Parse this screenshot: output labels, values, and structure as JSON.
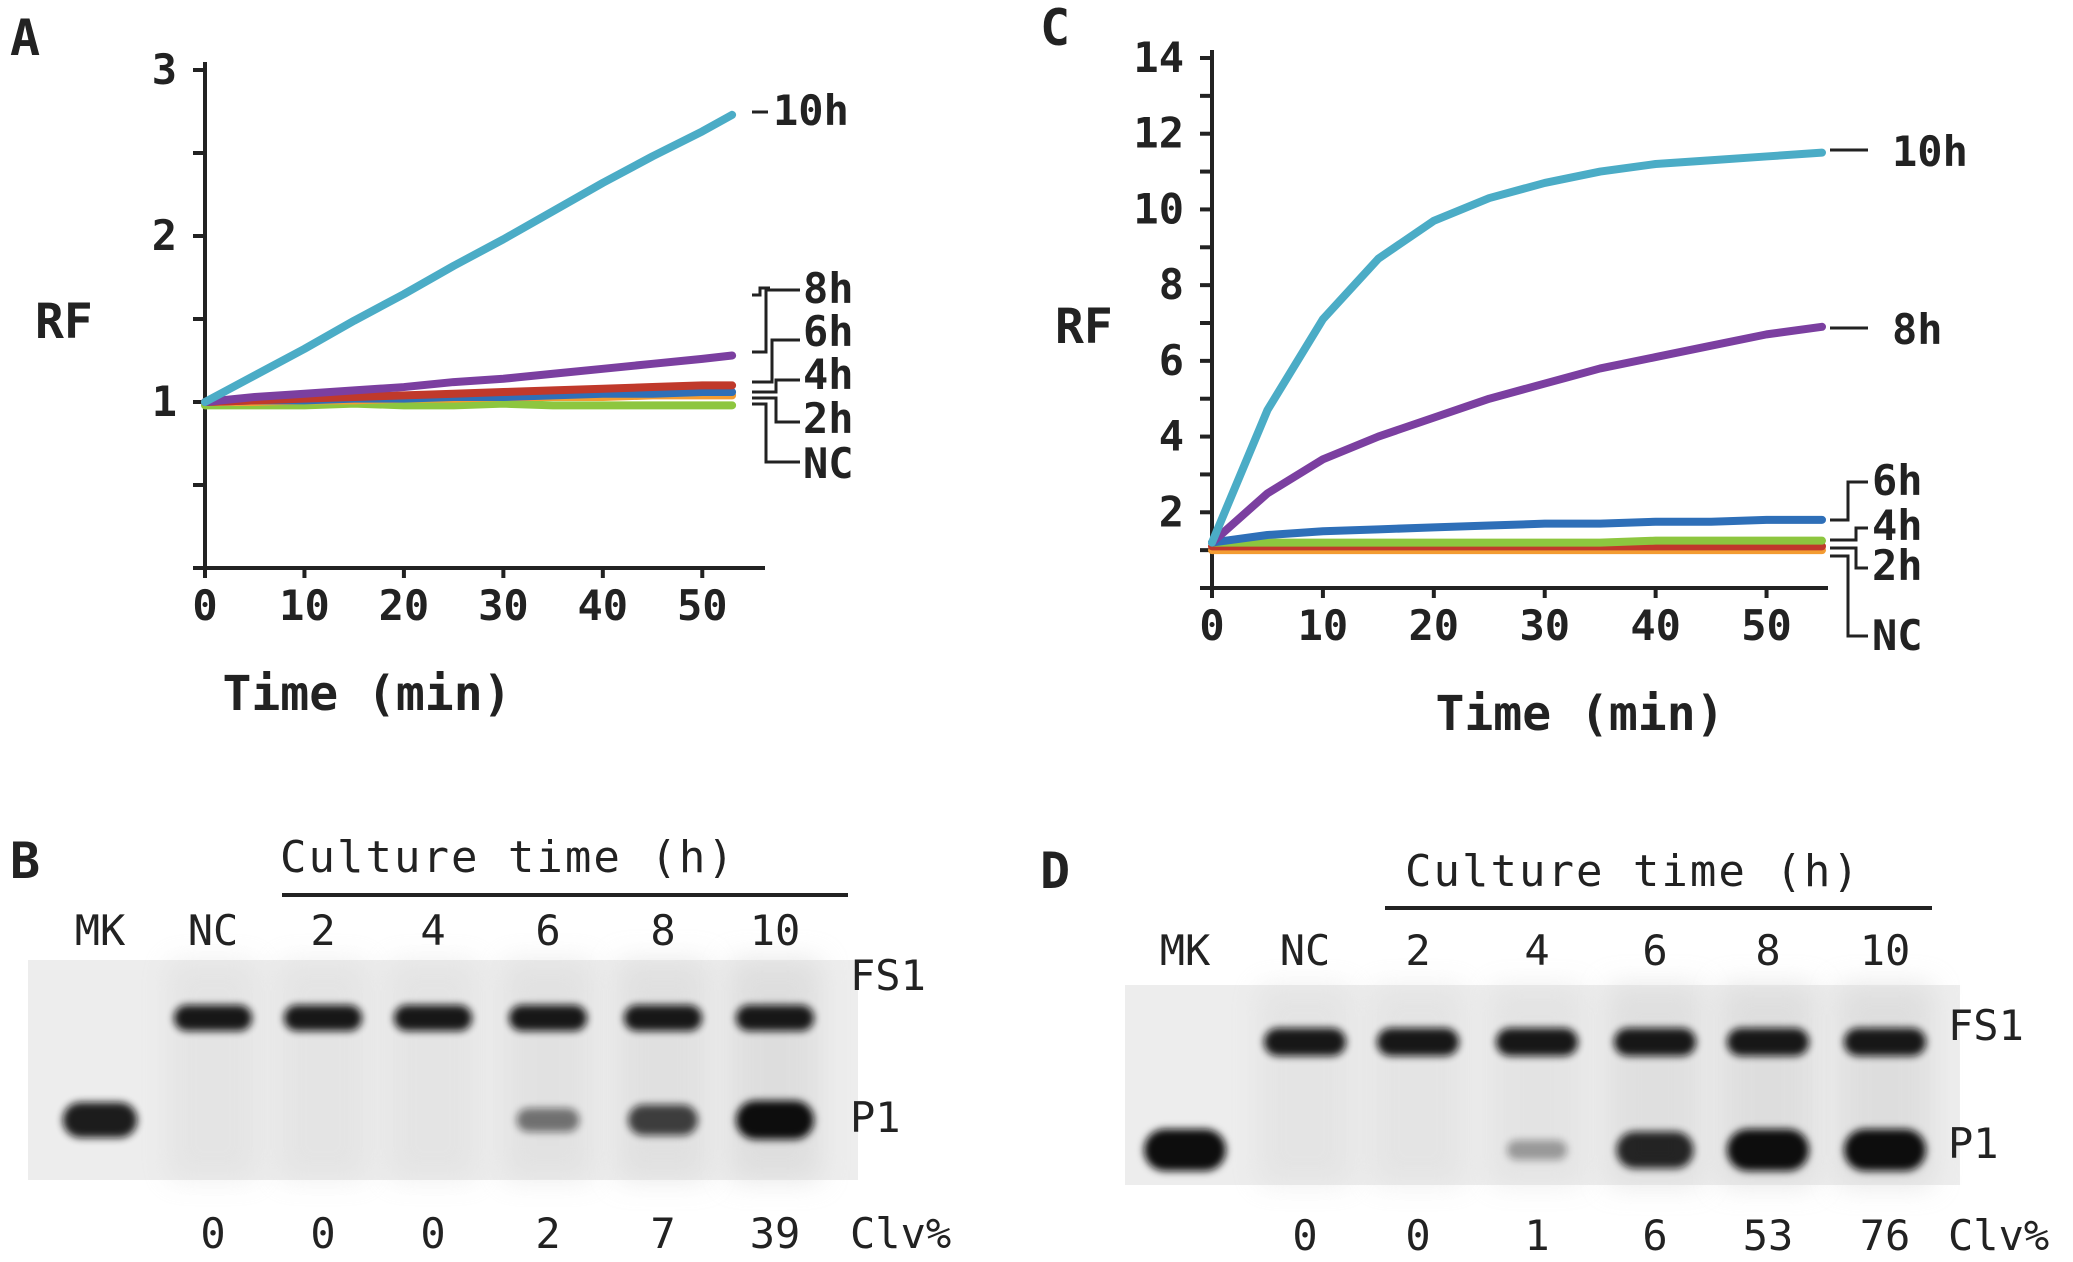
{
  "figure": {
    "panels": [
      "A",
      "B",
      "C",
      "D"
    ]
  },
  "chart_data": [
    {
      "panel": "A",
      "type": "line",
      "title": "",
      "xlabel": "Time (min)",
      "ylabel": "RF",
      "xlim": [
        0,
        55
      ],
      "ylim": [
        0,
        3
      ],
      "xticks": [
        0,
        10,
        20,
        30,
        40,
        50
      ],
      "yticks": [
        1,
        2,
        3
      ],
      "x": [
        0,
        5,
        10,
        15,
        20,
        25,
        30,
        35,
        40,
        45,
        50,
        53
      ],
      "series": [
        {
          "name": "10h",
          "label": "10h",
          "color": "#4bacc6",
          "values": [
            1.0,
            1.16,
            1.32,
            1.49,
            1.65,
            1.82,
            1.98,
            2.15,
            2.32,
            2.48,
            2.63,
            2.73
          ]
        },
        {
          "name": "8h",
          "label": "8h",
          "color": "#7b3fa0",
          "values": [
            1.0,
            1.03,
            1.05,
            1.07,
            1.09,
            1.12,
            1.14,
            1.17,
            1.2,
            1.23,
            1.26,
            1.28
          ]
        },
        {
          "name": "6h",
          "label": "6h",
          "color": "#c0392b",
          "values": [
            1.0,
            1.01,
            1.02,
            1.03,
            1.04,
            1.05,
            1.06,
            1.07,
            1.08,
            1.09,
            1.1,
            1.1
          ]
        },
        {
          "name": "4h",
          "label": "4h",
          "color": "#2e6fb8",
          "values": [
            1.0,
            1.01,
            1.01,
            1.02,
            1.02,
            1.03,
            1.03,
            1.04,
            1.05,
            1.05,
            1.06,
            1.06
          ]
        },
        {
          "name": "2h",
          "label": "2h",
          "color": "#f39c32",
          "values": [
            1.0,
            1.0,
            1.01,
            1.01,
            1.02,
            1.02,
            1.03,
            1.03,
            1.03,
            1.04,
            1.04,
            1.04
          ]
        },
        {
          "name": "NC",
          "label": "NC",
          "color": "#8dc63f",
          "values": [
            0.98,
            0.98,
            0.98,
            0.99,
            0.98,
            0.98,
            0.99,
            0.98,
            0.98,
            0.98,
            0.98,
            0.98
          ]
        }
      ]
    },
    {
      "panel": "C",
      "type": "line",
      "title": "",
      "xlabel": "Time (min)",
      "ylabel": "RF",
      "xlim": [
        0,
        55
      ],
      "ylim": [
        0,
        14
      ],
      "xticks": [
        0,
        10,
        20,
        30,
        40,
        50
      ],
      "yticks": [
        2,
        4,
        6,
        8,
        10,
        12,
        14
      ],
      "x": [
        0,
        5,
        10,
        15,
        20,
        25,
        30,
        35,
        40,
        45,
        50,
        55
      ],
      "series": [
        {
          "name": "10h",
          "label": "10h",
          "color": "#4bacc6",
          "values": [
            1.2,
            4.7,
            7.1,
            8.7,
            9.7,
            10.3,
            10.7,
            11.0,
            11.2,
            11.3,
            11.4,
            11.5
          ]
        },
        {
          "name": "8h",
          "label": "8h",
          "color": "#7b3fa0",
          "values": [
            1.2,
            2.5,
            3.4,
            4.0,
            4.5,
            5.0,
            5.4,
            5.8,
            6.1,
            6.4,
            6.7,
            6.9
          ]
        },
        {
          "name": "6h",
          "label": "6h",
          "color": "#2e6fb8",
          "values": [
            1.2,
            1.4,
            1.5,
            1.55,
            1.6,
            1.65,
            1.7,
            1.7,
            1.75,
            1.75,
            1.8,
            1.8
          ]
        },
        {
          "name": "4h",
          "label": "4h",
          "color": "#8dc63f",
          "values": [
            1.2,
            1.2,
            1.2,
            1.2,
            1.2,
            1.2,
            1.2,
            1.2,
            1.25,
            1.25,
            1.25,
            1.25
          ]
        },
        {
          "name": "2h",
          "label": "2h",
          "color": "#c0392b",
          "values": [
            1.1,
            1.1,
            1.1,
            1.1,
            1.1,
            1.1,
            1.1,
            1.1,
            1.1,
            1.1,
            1.1,
            1.1
          ]
        },
        {
          "name": "NC",
          "label": "NC",
          "color": "#f39c32",
          "values": [
            1.0,
            1.0,
            1.0,
            1.0,
            1.0,
            1.0,
            1.0,
            1.0,
            1.0,
            1.0,
            1.0,
            1.0
          ]
        }
      ]
    },
    {
      "panel": "B",
      "type": "gel",
      "title": "Culture time (h)",
      "lanes": [
        "MK",
        "NC",
        "2",
        "4",
        "6",
        "8",
        "10"
      ],
      "bands": [
        "FS1",
        "P1"
      ],
      "fs1_intensity": [
        0,
        1,
        1,
        1,
        1,
        1,
        1
      ],
      "p1_intensity": [
        0.85,
        0,
        0,
        0,
        0.35,
        0.65,
        1
      ],
      "clv_label": "Clv%",
      "clv_values": [
        "0",
        "0",
        "0",
        "2",
        "7",
        "39"
      ]
    },
    {
      "panel": "D",
      "type": "gel",
      "title": "Culture time (h)",
      "lanes": [
        "MK",
        "NC",
        "2",
        "4",
        "6",
        "8",
        "10"
      ],
      "bands": [
        "FS1",
        "P1"
      ],
      "fs1_intensity": [
        0,
        1,
        1,
        1,
        1,
        1,
        1
      ],
      "p1_intensity": [
        1,
        0,
        0,
        0.12,
        0.8,
        1,
        1
      ],
      "clv_label": "Clv%",
      "clv_values": [
        "0",
        "0",
        "1",
        "6",
        "53",
        "76"
      ]
    }
  ]
}
